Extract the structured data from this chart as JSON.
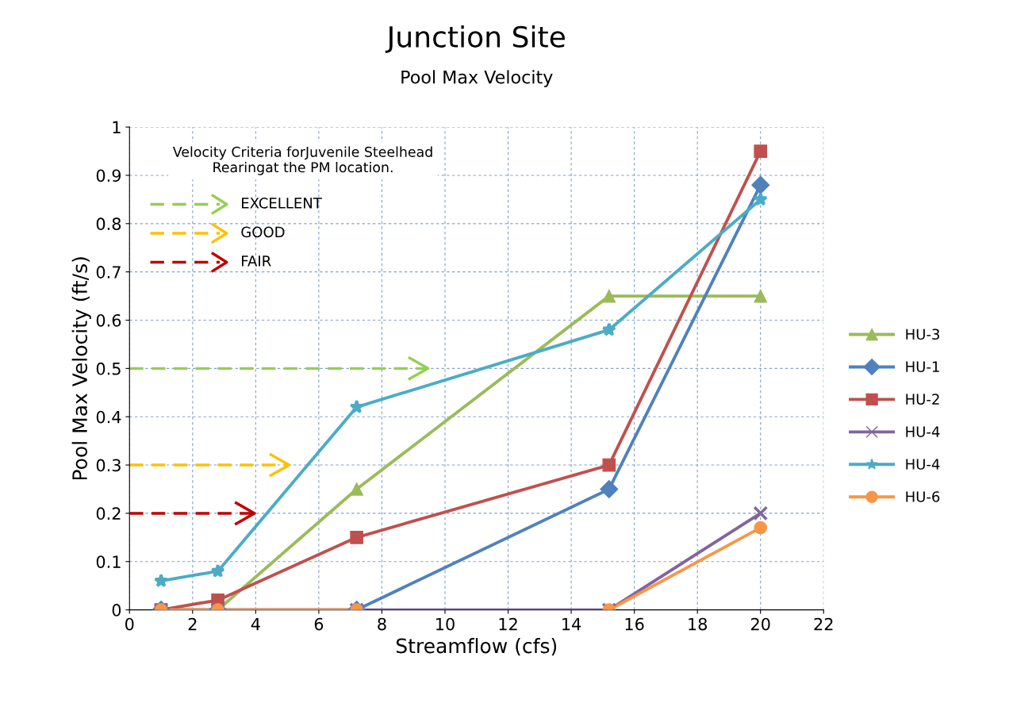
{
  "chart_data": {
    "type": "line",
    "title": "Junction Site",
    "subtitle": "Pool Max Velocity",
    "xlabel": "Streamflow (cfs)",
    "ylabel": "Pool Max Velocity (ft/s)",
    "x": [
      1,
      2.8,
      7.2,
      15.2,
      20
    ],
    "series": [
      {
        "name": "HU-3",
        "color": "#9bbb59",
        "marker": "triangle",
        "values": [
          0,
          0,
          0.25,
          0.65,
          0.65
        ]
      },
      {
        "name": "HU-1",
        "color": "#4f81bd",
        "marker": "diamond",
        "values": [
          0,
          0,
          0,
          0.25,
          0.88
        ]
      },
      {
        "name": "HU-2",
        "color": "#c0504d",
        "marker": "square",
        "values": [
          0,
          0.02,
          0.15,
          0.3,
          0.95
        ]
      },
      {
        "name": "HU-4",
        "color": "#8064a2",
        "marker": "cross",
        "values": [
          0,
          0,
          0,
          0,
          0.2
        ]
      },
      {
        "name": "HU-4",
        "color": "#4bacc6",
        "marker": "star",
        "values": [
          0.06,
          0.08,
          0.42,
          0.58,
          0.85
        ]
      },
      {
        "name": "HU-6",
        "color": "#f79646",
        "marker": "circle",
        "x": [
          1,
          2.8,
          7.2,
          11,
          15.2,
          20
        ],
        "values": [
          0,
          0,
          0,
          null,
          0,
          0.17
        ]
      }
    ],
    "ref_lines": [
      {
        "axis": "y",
        "value": 0.5,
        "label": "EXCELLENT",
        "color": "#92d050",
        "line_style": "dashed"
      },
      {
        "axis": "y",
        "value": 0.3,
        "label": "GOOD",
        "color": "#ffc000",
        "line_style": "dashed"
      },
      {
        "axis": "y",
        "value": 0.2,
        "label": "FAIR",
        "color": "#c00000",
        "line_style": "dashed"
      }
    ],
    "annotations": [
      "Velocity Criteria forJuvenile Steelhead\nRearingat the PM location."
    ],
    "xlim": [
      0,
      22
    ],
    "xticks": [
      0,
      2,
      4,
      6,
      8,
      10,
      12,
      14,
      16,
      18,
      20,
      22
    ],
    "ylim": [
      0,
      1
    ],
    "yticks": [
      0,
      0.1,
      0.2,
      0.3,
      0.4,
      0.5,
      0.6,
      0.7,
      0.8,
      0.9,
      1
    ],
    "grid": true,
    "legend": "right"
  }
}
